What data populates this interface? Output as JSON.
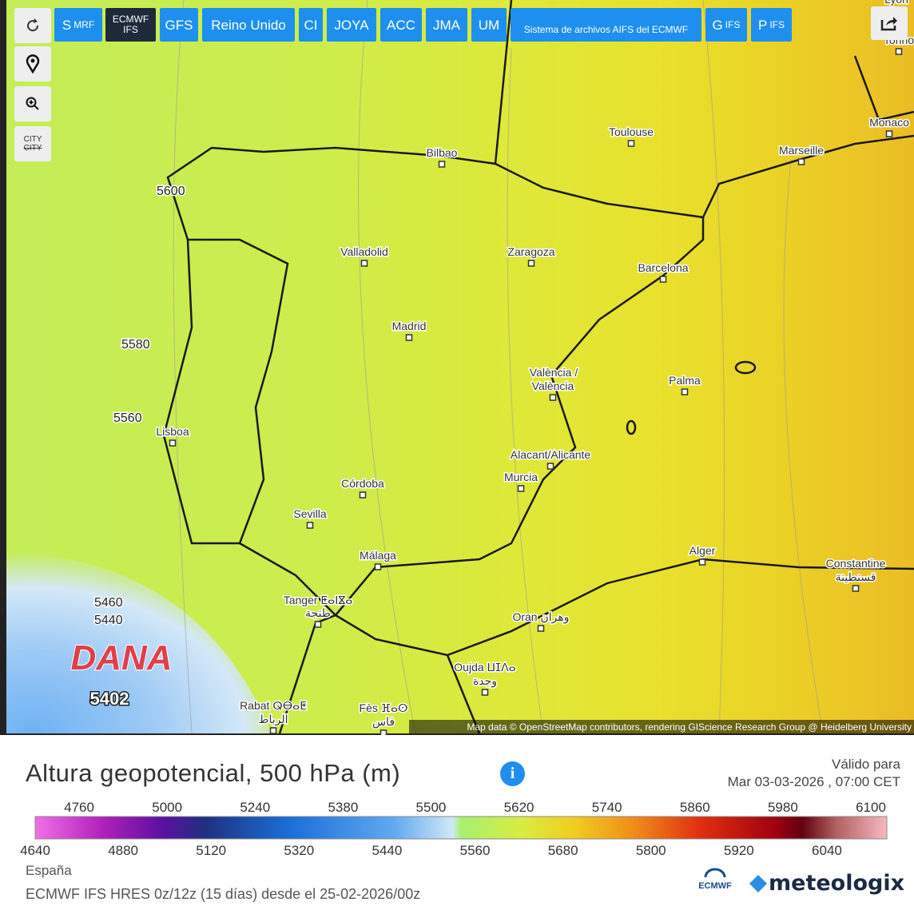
{
  "toolbar": {
    "buttons": [
      {
        "main": "S",
        "sub": "MRF"
      },
      {
        "main": "ECMWF",
        "sub": "IFS"
      },
      {
        "main": "GFS"
      },
      {
        "main": "Reino Unido"
      },
      {
        "main": "CI"
      },
      {
        "main": "JOYA"
      },
      {
        "main": "ACC"
      },
      {
        "main": "JMA"
      },
      {
        "main": "UM"
      },
      {
        "main": "Sistema de archivos AIFS del ECMWF"
      },
      {
        "main": "G",
        "sub": "IFS"
      },
      {
        "main": "P",
        "sub": "IFS"
      }
    ],
    "city_toggle": {
      "on": "CITY",
      "off": "CITY"
    }
  },
  "map": {
    "cities": [
      "Lyon",
      "Torino",
      "Toulouse",
      "Monaco",
      "Marseille",
      "Bilbao",
      "Valladolid",
      "Zaragoza",
      "Barcelona",
      "Madrid",
      "València /",
      "València",
      "Palma",
      "Lisboa",
      "Alacant/Alicante",
      "Murcia",
      "Córdoba",
      "Sevilla",
      "Málaga",
      "Alger",
      "Constantine",
      "قسنطينة",
      "Tanger ⵟⴰⵏⴵⴰ",
      "طنجة",
      "Oran وهران",
      "Oujda ⵡⵊⴷⴰ",
      "وجدة",
      "Rabat ⵕⴱⴰⵟ",
      "الرباط",
      "Fès ⴼⴰⵙ",
      "فاس"
    ],
    "contours": [
      "5600",
      "5580",
      "5560",
      "5460",
      "5440"
    ],
    "low_label": "DANA",
    "low_value": "5402",
    "attribution": "Map data © OpenStreetMap contributors, rendering GIScience Research Group @ Heidelberg University"
  },
  "legend": {
    "title": "Altura geopotencial, 500 hPa (m)",
    "valid_label": "Válido para",
    "valid_time": "Mar 03-03-2026 , 07:00 CET",
    "scale": [
      4640,
      4760,
      4880,
      5000,
      5120,
      5240,
      5320,
      5380,
      5440,
      5500,
      5560,
      5620,
      5680,
      5740,
      5800,
      5860,
      5920,
      5980,
      6040,
      6100
    ],
    "region": "España",
    "model_info": "ECMWF IFS HRES 0z/12z (15 días) desde el 25-02-2026/00z",
    "logo1": "ECMWF",
    "logo2": "meteologix"
  }
}
